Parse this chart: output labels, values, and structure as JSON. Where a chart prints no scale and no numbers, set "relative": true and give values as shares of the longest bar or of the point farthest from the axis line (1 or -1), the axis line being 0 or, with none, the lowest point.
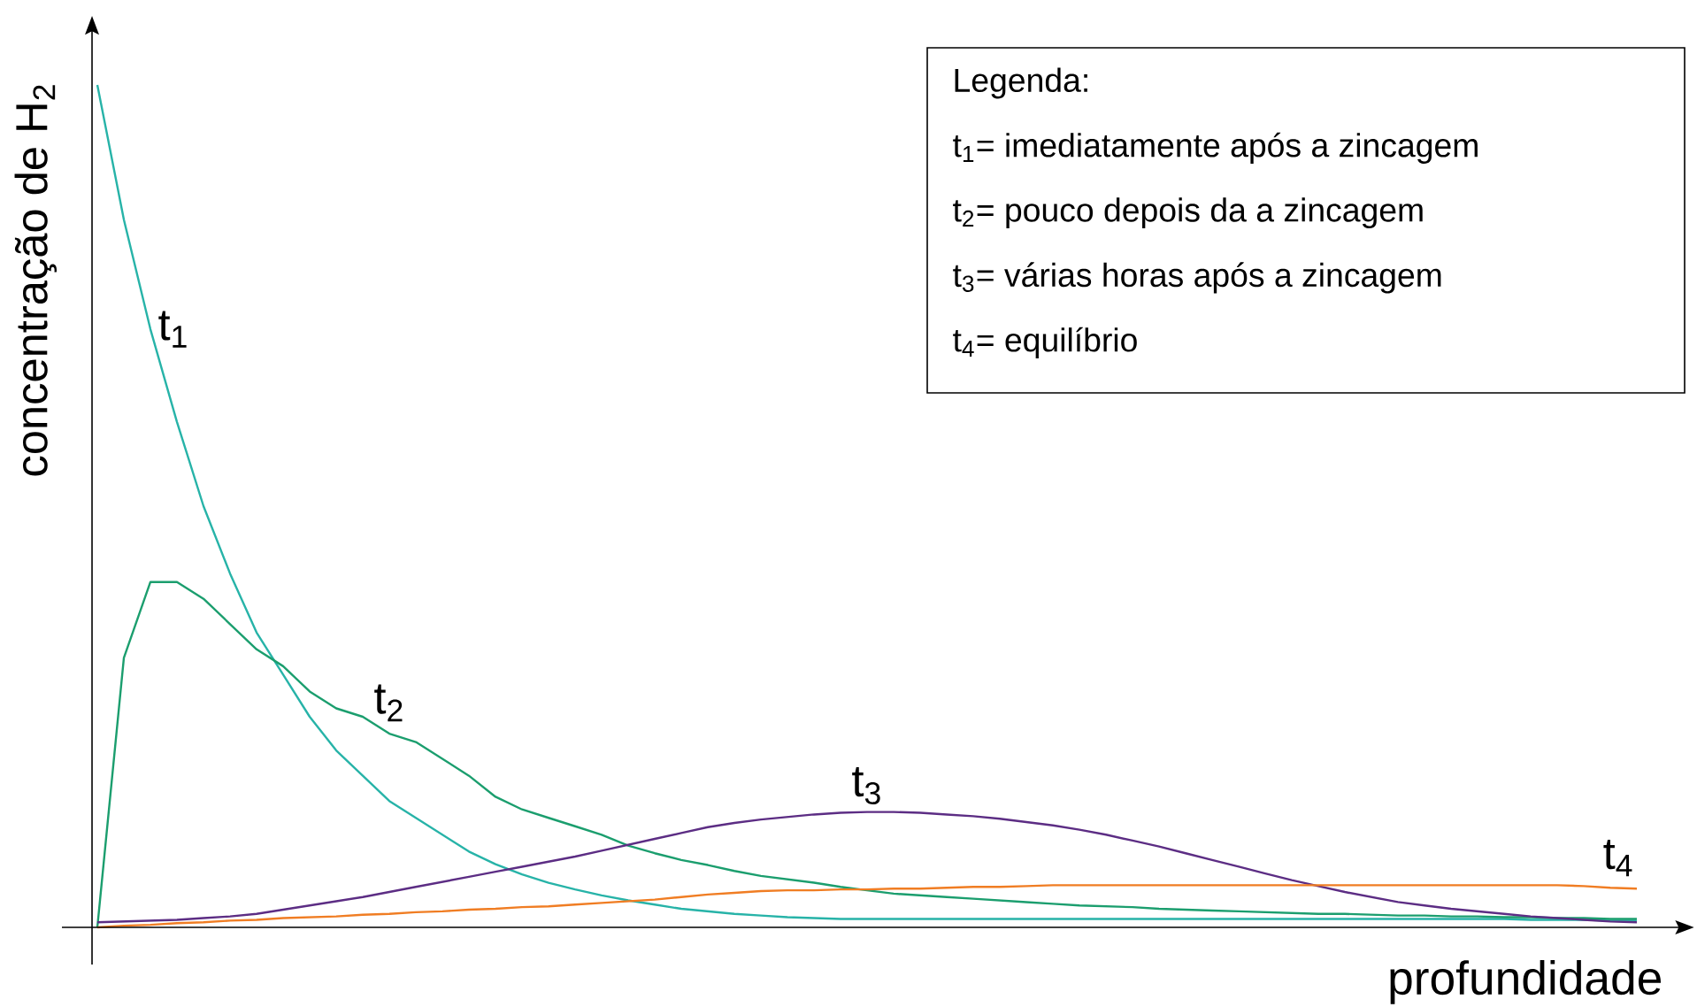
{
  "chart_data": {
    "type": "line",
    "relative": true,
    "xlabel": "profundidade",
    "ylabel": "concentração de H$_{2}$",
    "legend_title": "Legenda:",
    "annotations": [
      "t$_{1}$= imediatamente após a zincagem",
      "t$_{2}$= pouco depois da a zincagem",
      "t$_{3}$= várias horas após a zincagem",
      "t$_{4}$= equilíbrio"
    ],
    "categories": [
      null,
      null,
      null,
      null,
      null,
      null,
      null,
      null,
      null,
      null,
      null,
      null,
      null,
      null,
      null,
      null,
      null,
      null,
      null,
      null,
      null,
      null,
      null,
      null,
      null,
      null,
      null,
      null,
      null,
      null,
      null,
      null,
      null,
      null,
      null,
      null,
      null,
      null,
      null,
      null,
      null,
      null,
      null,
      null,
      null,
      null,
      null,
      null,
      null,
      null,
      null,
      null,
      null,
      null,
      null,
      null,
      null,
      null,
      null
    ],
    "series": [
      {
        "name": "t$_{1}$",
        "color": "#27b3a8",
        "values": [
          1.0,
          0.84,
          0.71,
          0.6,
          0.5,
          0.42,
          0.35,
          0.3,
          0.25,
          0.21,
          0.18,
          0.15,
          0.13,
          0.11,
          0.09,
          0.075,
          0.063,
          0.053,
          0.045,
          0.038,
          0.032,
          0.027,
          0.022,
          0.019,
          0.016,
          0.014,
          0.012,
          0.011,
          0.01,
          0.01,
          0.01,
          0.01,
          0.01,
          0.01,
          0.01,
          0.01,
          0.01,
          0.01,
          0.01,
          0.01,
          0.01,
          0.01,
          0.01,
          0.01,
          0.01,
          0.01,
          0.01,
          0.01,
          0.01,
          0.01,
          0.01,
          0.01,
          0.01,
          0.01,
          0.009,
          0.009,
          0.009,
          0.008,
          0.008
        ]
      },
      {
        "name": "t$_{2}$",
        "color": "#1b9e6e",
        "values": [
          0.0,
          0.32,
          0.41,
          0.41,
          0.39,
          0.36,
          0.33,
          0.31,
          0.28,
          0.26,
          0.25,
          0.23,
          0.22,
          0.2,
          0.18,
          0.155,
          0.14,
          0.13,
          0.12,
          0.11,
          0.097,
          0.088,
          0.08,
          0.074,
          0.067,
          0.061,
          0.057,
          0.053,
          0.048,
          0.044,
          0.04,
          0.038,
          0.036,
          0.034,
          0.032,
          0.03,
          0.028,
          0.026,
          0.025,
          0.024,
          0.022,
          0.021,
          0.02,
          0.019,
          0.018,
          0.017,
          0.016,
          0.016,
          0.015,
          0.014,
          0.014,
          0.013,
          0.013,
          0.012,
          0.012,
          0.011,
          0.011,
          0.01,
          0.01
        ]
      },
      {
        "name": "t$_{3}$",
        "color": "#5c2d84",
        "values": [
          0.006,
          0.007,
          0.008,
          0.009,
          0.011,
          0.013,
          0.016,
          0.021,
          0.026,
          0.031,
          0.036,
          0.042,
          0.048,
          0.054,
          0.06,
          0.066,
          0.072,
          0.078,
          0.084,
          0.091,
          0.098,
          0.105,
          0.112,
          0.119,
          0.124,
          0.128,
          0.131,
          0.134,
          0.136,
          0.137,
          0.137,
          0.136,
          0.134,
          0.132,
          0.129,
          0.125,
          0.121,
          0.116,
          0.11,
          0.103,
          0.096,
          0.088,
          0.08,
          0.072,
          0.064,
          0.056,
          0.049,
          0.042,
          0.036,
          0.03,
          0.026,
          0.022,
          0.019,
          0.016,
          0.013,
          0.011,
          0.009,
          0.007,
          0.006
        ]
      },
      {
        "name": "t$_{4}$",
        "color": "#f07d23",
        "values": [
          0.0,
          0.002,
          0.003,
          0.005,
          0.006,
          0.008,
          0.009,
          0.011,
          0.012,
          0.013,
          0.015,
          0.016,
          0.018,
          0.019,
          0.021,
          0.022,
          0.024,
          0.025,
          0.027,
          0.029,
          0.031,
          0.033,
          0.036,
          0.039,
          0.041,
          0.043,
          0.044,
          0.044,
          0.045,
          0.045,
          0.046,
          0.046,
          0.047,
          0.048,
          0.048,
          0.049,
          0.05,
          0.05,
          0.05,
          0.05,
          0.05,
          0.05,
          0.05,
          0.05,
          0.05,
          0.05,
          0.05,
          0.05,
          0.05,
          0.05,
          0.05,
          0.05,
          0.05,
          0.05,
          0.05,
          0.05,
          0.049,
          0.047,
          0.046
        ]
      }
    ]
  }
}
